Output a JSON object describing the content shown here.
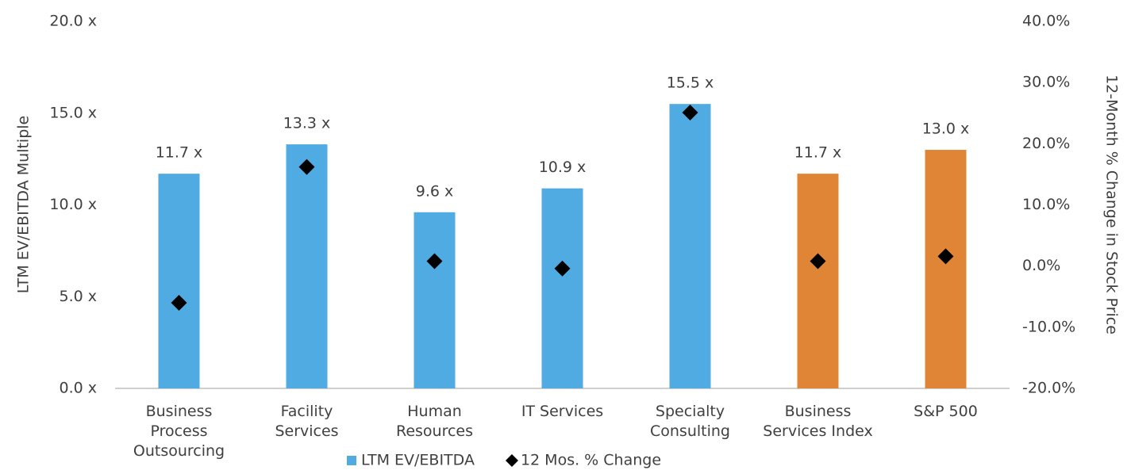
{
  "chart_data": {
    "type": "bar",
    "y_label": "LTM EV/EBITDA Multiple",
    "y2_label": "12-Month % Change in Stock Price",
    "categories": [
      "Business\nProcess\nOutsourcing",
      "Facility\nServices",
      "Human\nResources",
      "IT Services",
      "Specialty\nConsulting",
      "Business\nServices Index",
      "S&P 500"
    ],
    "series": [
      {
        "name": "LTM EV/EBITDA",
        "type": "bar",
        "color": "#4fabe1",
        "colors": [
          "#4fabe1",
          "#4fabe1",
          "#4fabe1",
          "#4fabe1",
          "#4fabe1",
          "#e08535",
          "#e08535"
        ],
        "values": [
          11.7,
          13.3,
          9.6,
          10.9,
          15.5,
          11.7,
          13.0
        ],
        "value_labels": [
          "11.7 x",
          "13.3 x",
          "9.6 x",
          "10.9 x",
          "15.5 x",
          "11.7 x",
          "13.0 x"
        ]
      },
      {
        "name": "12 Mos. % Change",
        "type": "scatter",
        "marker": "diamond",
        "axis": "y2",
        "color": "#000000",
        "values": [
          -6.0,
          16.2,
          0.8,
          -0.4,
          25.1,
          0.8,
          1.6
        ]
      }
    ],
    "ylim": [
      0,
      20
    ],
    "yticks": [
      {
        "value": 0,
        "label": "0.0 x"
      },
      {
        "value": 5,
        "label": "5.0 x"
      },
      {
        "value": 10,
        "label": "10.0 x"
      },
      {
        "value": 15,
        "label": "15.0 x"
      },
      {
        "value": 20,
        "label": "20.0 x"
      }
    ],
    "y2lim": [
      -20,
      40
    ],
    "y2ticks": [
      {
        "value": -20,
        "label": "-20.0%"
      },
      {
        "value": -10,
        "label": "-10.0%"
      },
      {
        "value": 0,
        "label": "0.0%"
      },
      {
        "value": 10,
        "label": "10.0%"
      },
      {
        "value": 20,
        "label": "20.0%"
      },
      {
        "value": 30,
        "label": "30.0%"
      },
      {
        "value": 40,
        "label": "40.0%"
      }
    ],
    "grid": false,
    "legend": "bottom"
  }
}
